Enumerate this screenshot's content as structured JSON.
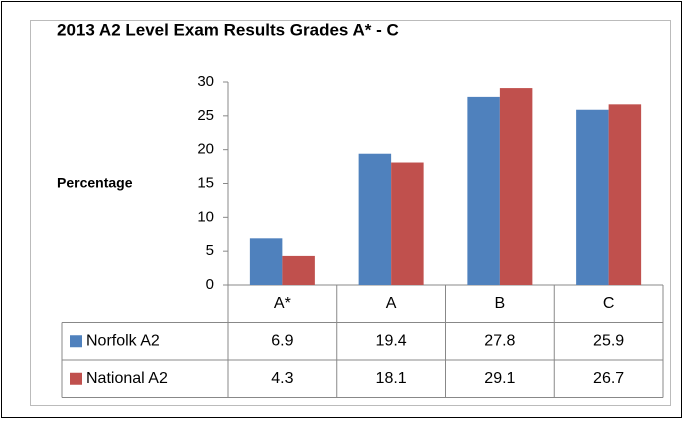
{
  "chart_data": {
    "type": "bar",
    "title": "2013 A2 Level Exam Results Grades A* - C",
    "y_label": "Percentage",
    "categories": [
      "A*",
      "A",
      "B",
      "C"
    ],
    "series": [
      {
        "name": "Norfolk A2",
        "color": "#4f81bd",
        "values": [
          6.9,
          19.4,
          27.8,
          25.9
        ]
      },
      {
        "name": "National A2",
        "color": "#c0504d",
        "values": [
          4.3,
          18.1,
          29.1,
          26.7
        ]
      }
    ],
    "ylim": [
      0,
      30
    ],
    "yticks": [
      0,
      5,
      10,
      15,
      20,
      25,
      30
    ],
    "grid": false
  }
}
